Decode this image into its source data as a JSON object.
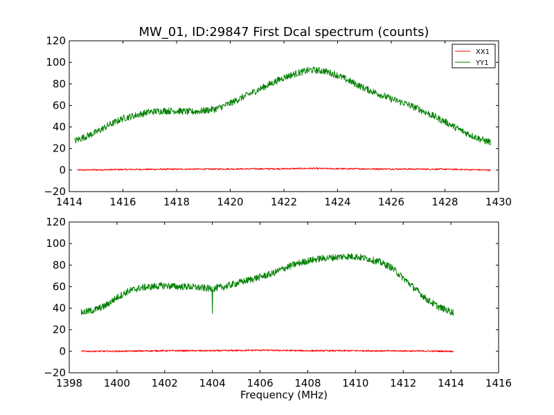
{
  "figure": {
    "title": "MW_01, ID:29847 First Dcal spectrum (counts)",
    "xlabel": "Frequency (MHz)"
  },
  "colors": {
    "XX1": "#ff0000",
    "YY1": "#007f00"
  },
  "chart_data": [
    {
      "type": "line",
      "title": "MW_01, ID:29847 First Dcal spectrum (counts)",
      "xlabel": "",
      "ylabel": "",
      "xlim": [
        1414,
        1430
      ],
      "ylim": [
        -20,
        120
      ],
      "xticks": [
        "1414",
        "1416",
        "1418",
        "1420",
        "1422",
        "1424",
        "1426",
        "1428",
        "1430"
      ],
      "yticks": [
        "−20",
        "0",
        "20",
        "40",
        "60",
        "80",
        "100",
        "120"
      ],
      "grid": false,
      "legend": {
        "placement": "top-right",
        "entries": [
          "XX1",
          "YY1"
        ]
      },
      "series": [
        {
          "name": "XX1",
          "color": "#ff0000",
          "x": [
            1414.3,
            1416,
            1418,
            1420,
            1422,
            1423,
            1424,
            1426,
            1428,
            1429.7
          ],
          "y": [
            0,
            0.5,
            0.8,
            1,
            1.2,
            1.5,
            1.2,
            1,
            0.8,
            0
          ]
        },
        {
          "name": "YY1",
          "color": "#007f00",
          "x": [
            1414.2,
            1414.5,
            1415,
            1415.5,
            1416,
            1416.5,
            1417,
            1417.5,
            1418,
            1418.5,
            1419,
            1419.5,
            1420,
            1420.5,
            1421,
            1421.5,
            1422,
            1422.5,
            1423,
            1423.5,
            1424,
            1424.5,
            1425,
            1425.5,
            1426,
            1426.5,
            1427,
            1427.5,
            1428,
            1428.5,
            1429,
            1429.5,
            1429.7
          ],
          "y": [
            27,
            30,
            35,
            42,
            48,
            51,
            54,
            55,
            55,
            54,
            55,
            57,
            62,
            68,
            74,
            80,
            86,
            90,
            93,
            92,
            88,
            82,
            76,
            71,
            66,
            62,
            57,
            51,
            45,
            38,
            32,
            27,
            26
          ]
        }
      ]
    },
    {
      "type": "line",
      "title": "",
      "xlabel": "Frequency (MHz)",
      "ylabel": "",
      "xlim": [
        1398,
        1416
      ],
      "ylim": [
        -20,
        120
      ],
      "xticks": [
        "1398",
        "1400",
        "1402",
        "1404",
        "1406",
        "1408",
        "1410",
        "1412",
        "1414",
        "1416"
      ],
      "yticks": [
        "−20",
        "0",
        "20",
        "40",
        "60",
        "80",
        "100",
        "120"
      ],
      "grid": false,
      "series": [
        {
          "name": "XX1",
          "color": "#ff0000",
          "x": [
            1398.5,
            1400,
            1402,
            1404,
            1406,
            1408,
            1410,
            1412,
            1414.1
          ],
          "y": [
            0,
            0,
            0.5,
            0.5,
            1,
            0.5,
            0.5,
            0.3,
            0
          ]
        },
        {
          "name": "YY1",
          "color": "#007f00",
          "x": [
            1398.5,
            1399,
            1399.5,
            1400,
            1400.5,
            1401,
            1401.5,
            1402,
            1402.5,
            1403,
            1403.5,
            1404,
            1404.5,
            1405,
            1405.5,
            1406,
            1406.5,
            1407,
            1407.5,
            1408,
            1408.5,
            1409,
            1409.5,
            1410,
            1410.5,
            1411,
            1411.5,
            1412,
            1412.5,
            1413,
            1413.5,
            1414.1
          ],
          "y": [
            36,
            38,
            42,
            50,
            56,
            59,
            60,
            61,
            60,
            60,
            59,
            58,
            60,
            63,
            66,
            69,
            72,
            77,
            81,
            84,
            86,
            87,
            88,
            88,
            86,
            83,
            78,
            68,
            58,
            48,
            41,
            36
          ],
          "spikes": [
            {
              "x": 1404,
              "y": 35
            }
          ]
        }
      ]
    }
  ]
}
